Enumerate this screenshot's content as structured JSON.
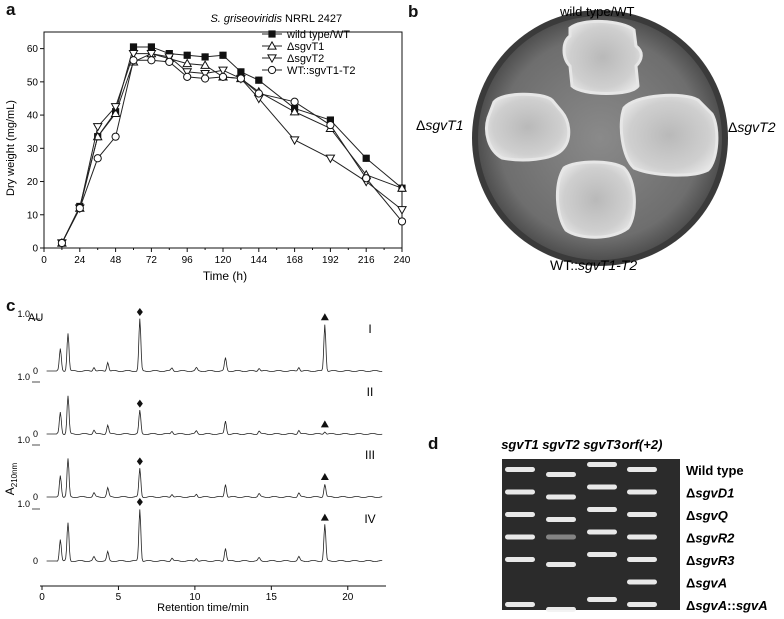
{
  "panels": {
    "a": {
      "label": "a",
      "legend_title": "NRRL 2427",
      "legend_title_italic": "S. griseoviridis",
      "chart_data": {
        "type": "line",
        "xlabel": "Time (h)",
        "ylabel": "Dry weight (mg/mL)",
        "xlim": [
          0,
          240
        ],
        "ylim": [
          0,
          65
        ],
        "xticks": [
          0,
          12,
          24,
          36,
          48,
          60,
          72,
          84,
          96,
          108,
          120,
          132,
          144,
          156,
          168,
          180,
          192,
          204,
          216,
          228,
          240
        ],
        "xticklabels": [
          "0",
          "",
          "24",
          "",
          "48",
          "",
          "72",
          "",
          "96",
          "",
          "120",
          "",
          "144",
          "",
          "168",
          "",
          "192",
          "",
          "216",
          "",
          "240"
        ],
        "yticks": [
          0,
          10,
          20,
          30,
          40,
          50,
          60
        ],
        "x": [
          12,
          24,
          36,
          48,
          60,
          72,
          84,
          96,
          108,
          120,
          132,
          144,
          168,
          192,
          216,
          240
        ],
        "series": [
          {
            "name": "wild type/WT",
            "marker": "filled-square",
            "values": [
              1.5,
              12.5,
              33.5,
              41,
              60.5,
              60.5,
              58.5,
              58,
              57.5,
              58,
              53,
              50.5,
              42,
              38.5,
              27,
              18
            ]
          },
          {
            "name": "ΔsgvT1",
            "marker": "open-triangle-up",
            "values": [
              1.5,
              12,
              33.5,
              40.5,
              56,
              58.5,
              57,
              55.5,
              55,
              51.5,
              51,
              47,
              41,
              36,
              22,
              18
            ]
          },
          {
            "name": "ΔsgvT2",
            "marker": "open-triangle-down",
            "values": [
              1.5,
              12,
              36.5,
              42.5,
              58.5,
              58.5,
              57.5,
              53,
              52.5,
              53.5,
              51,
              45,
              32.5,
              27,
              20,
              11.5
            ]
          },
          {
            "name": "WT::sgvT1-T2",
            "marker": "open-circle",
            "values": [
              1.5,
              12,
              27,
              33.5,
              56.5,
              56.5,
              56,
              51.5,
              51,
              51.5,
              51,
              46.5,
              44,
              37,
              21,
              8
            ]
          }
        ]
      }
    },
    "b": {
      "label": "b",
      "top": "wild type/WT",
      "left_prefix": "Δ",
      "left": "sgvT1",
      "right_prefix": "Δ",
      "right": "sgvT2",
      "bottom_prefix": "WT::",
      "bottom": "sgvT1-T2"
    },
    "c": {
      "label": "c",
      "au": "AU",
      "ylabel_main": "A",
      "ylabel_sub": "210nm",
      "xlabel": "Retention time/min",
      "xticks": [
        "0",
        "5",
        "10",
        "15",
        "20"
      ],
      "tick_scale": "1.0",
      "tick_zero": "0",
      "traces": [
        {
          "label": "I",
          "diamond_height": 1.0,
          "triangle_height": 0.9
        },
        {
          "label": "II",
          "diamond_height": 0.45,
          "triangle_height": 0.05
        },
        {
          "label": "III",
          "diamond_height": 0.55,
          "triangle_height": 0.25
        },
        {
          "label": "IV",
          "diamond_height": 1.0,
          "triangle_height": 0.7
        }
      ],
      "diamond_time": 6.4,
      "triangle_time": 18.5
    },
    "d": {
      "label": "d",
      "columns": [
        "sgvT1",
        "sgvT2",
        "sgvT3",
        "orf(+2)"
      ],
      "rows": [
        {
          "label": "Wild type",
          "prefix": "",
          "bands": [
            "mid",
            "low",
            "high",
            "mid"
          ]
        },
        {
          "label": "sgvD1",
          "prefix": "Δ",
          "bands": [
            "mid",
            "low",
            "high",
            "mid"
          ]
        },
        {
          "label": "sgvQ",
          "prefix": "Δ",
          "bands": [
            "mid",
            "low",
            "high",
            "mid"
          ]
        },
        {
          "label": "sgvR2",
          "prefix": "Δ",
          "bands": [
            "mid",
            "faint",
            "high",
            "mid"
          ]
        },
        {
          "label": "sgvR3",
          "prefix": "Δ",
          "bands": [
            "mid",
            "low",
            "high",
            "mid"
          ]
        },
        {
          "label": "sgvA",
          "prefix": "Δ",
          "bands": [
            "none",
            "none",
            "none",
            "mid"
          ]
        },
        {
          "label": "sgvA",
          "prefix": "Δ",
          "suffix_sep": "::",
          "suffix": "sgvA",
          "bands": [
            "mid",
            "low",
            "high",
            "mid"
          ]
        }
      ]
    }
  }
}
